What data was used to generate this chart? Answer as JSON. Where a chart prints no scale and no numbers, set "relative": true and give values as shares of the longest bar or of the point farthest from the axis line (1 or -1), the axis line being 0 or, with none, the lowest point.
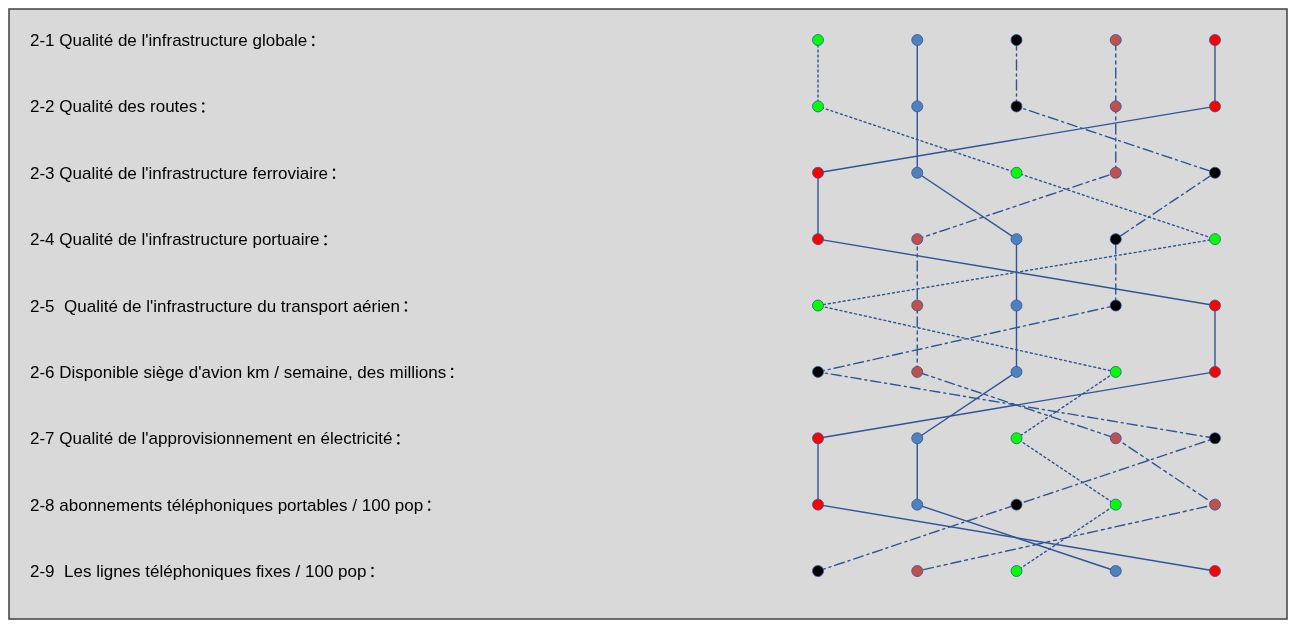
{
  "chart_data": {
    "type": "line",
    "orientation": "horizontal",
    "relative": true,
    "categories": [
      "2-1 Qualité de l'infrastructure globale",
      "2-2 Qualité des routes",
      "2-3 Qualité de l'infrastructure ferroviaire",
      "2-4 Qualité de l'infrastructure portuaire",
      "2-5  Qualité de l'infrastructure du transport aérien",
      "2-6 Disponible siège d'avion km / semaine, des millions",
      "2-7 Qualité de l'approvisionnement en électricité",
      "2-8 abonnements téléphoniques portables / 100 pop",
      "2-9  Les lignes téléphoniques fixes / 100 pop"
    ],
    "marker": "circle",
    "series": [
      {
        "color": "#2f5597",
        "colors": [
          "#00ff00",
          "#00ff00",
          "#00ff00",
          "#00ff00",
          "#00ff00",
          "#00ff00",
          "#00ff00",
          "#00ff00",
          "#00ff00"
        ],
        "line_style": "dotted",
        "values": [
          0,
          0,
          0.5,
          1,
          0,
          0.75,
          0.5,
          0.75,
          0.5
        ]
      },
      {
        "color": "#2f5597",
        "colors": [
          "#4f81bd",
          "#4f81bd",
          "#4f81bd",
          "#4f81bd",
          "#4f81bd",
          "#4f81bd",
          "#4f81bd",
          "#4f81bd",
          "#4f81bd"
        ],
        "line_style": "solid",
        "values": [
          0.25,
          0.25,
          0.25,
          0.5,
          0.5,
          0.5,
          0.25,
          0.25,
          0.75
        ]
      },
      {
        "color": "#2f5597",
        "colors": [
          "#000000",
          "#000000",
          "#000000",
          "#000000",
          "#000000",
          "#000000",
          "#000000",
          "#000000",
          "#000000"
        ],
        "line_style": "dashdot",
        "values": [
          0.5,
          0.5,
          1,
          0.75,
          0.75,
          0,
          1,
          0.5,
          0
        ]
      },
      {
        "color": "#2f5597",
        "colors": [
          "#c0504d",
          "#c0504d",
          "#c0504d",
          "#c0504d",
          "#c0504d",
          "#c0504d",
          "#c0504d",
          "#c0504d",
          "#c0504d"
        ],
        "line_style": "dashed",
        "values": [
          0.75,
          0.75,
          0.75,
          0.25,
          0.25,
          0.25,
          0.75,
          1,
          0.25
        ]
      },
      {
        "color": "#2f5597",
        "colors": [
          "#ff0000",
          "#ff0000",
          "#ff0000",
          "#ff0000",
          "#ff0000",
          "#ff0000",
          "#ff0000",
          "#ff0000",
          "#ff0000"
        ],
        "line_style": "solid",
        "values": [
          1,
          1,
          0,
          0,
          1,
          1,
          0,
          0,
          1
        ]
      }
    ]
  }
}
